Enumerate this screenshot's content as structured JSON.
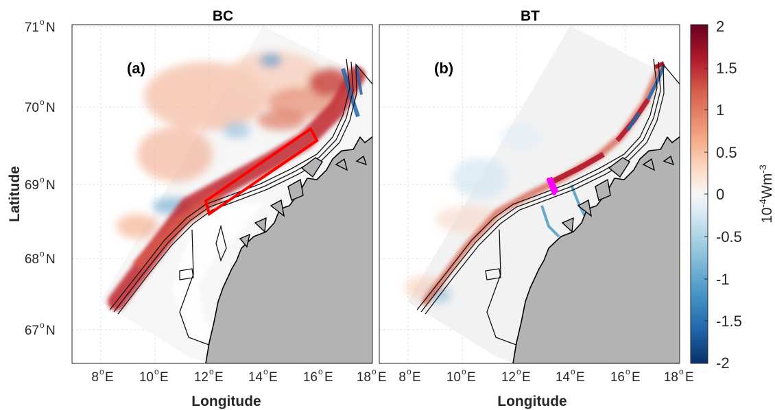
{
  "panels": [
    {
      "id": "a",
      "title": "BC",
      "label": "(a)"
    },
    {
      "id": "b",
      "title": "BT",
      "label": "(b)"
    }
  ],
  "axes": {
    "xlabel": "Longitude",
    "ylabel": "Latitude",
    "xticks": [
      {
        "deg": "8",
        "hemi": "E"
      },
      {
        "deg": "10",
        "hemi": "E"
      },
      {
        "deg": "12",
        "hemi": "E"
      },
      {
        "deg": "14",
        "hemi": "E"
      },
      {
        "deg": "16",
        "hemi": "E"
      },
      {
        "deg": "18",
        "hemi": "E"
      }
    ],
    "yticks": [
      {
        "deg": "71",
        "hemi": "N"
      },
      {
        "deg": "70",
        "hemi": "N"
      },
      {
        "deg": "69",
        "hemi": "N"
      },
      {
        "deg": "68",
        "hemi": "N"
      },
      {
        "deg": "67",
        "hemi": "N"
      }
    ],
    "lon_range": [
      7.5,
      18
    ],
    "lat_range": [
      66.5,
      71
    ]
  },
  "colorbar": {
    "ticks": [
      "2",
      "1.5",
      "1",
      "0.5",
      "0",
      "-0.5",
      "-1",
      "-1.5",
      "-2"
    ],
    "range": [
      -2,
      2
    ],
    "label_base": "10",
    "label_exp": "-4",
    "label_unit": "Wm",
    "label_unit_exp": "-3",
    "colormap": [
      "#08306b",
      "#2166ac",
      "#4393c3",
      "#92c5de",
      "#d1e5f0",
      "#f7f7f7",
      "#fddbc7",
      "#f4a582",
      "#d6604d",
      "#b2182b",
      "#67001f"
    ]
  },
  "annotations": {
    "highlight_box_color": "#ff0000",
    "marker_color": "#ff00ff",
    "land_color": "#b3b3b3"
  }
}
